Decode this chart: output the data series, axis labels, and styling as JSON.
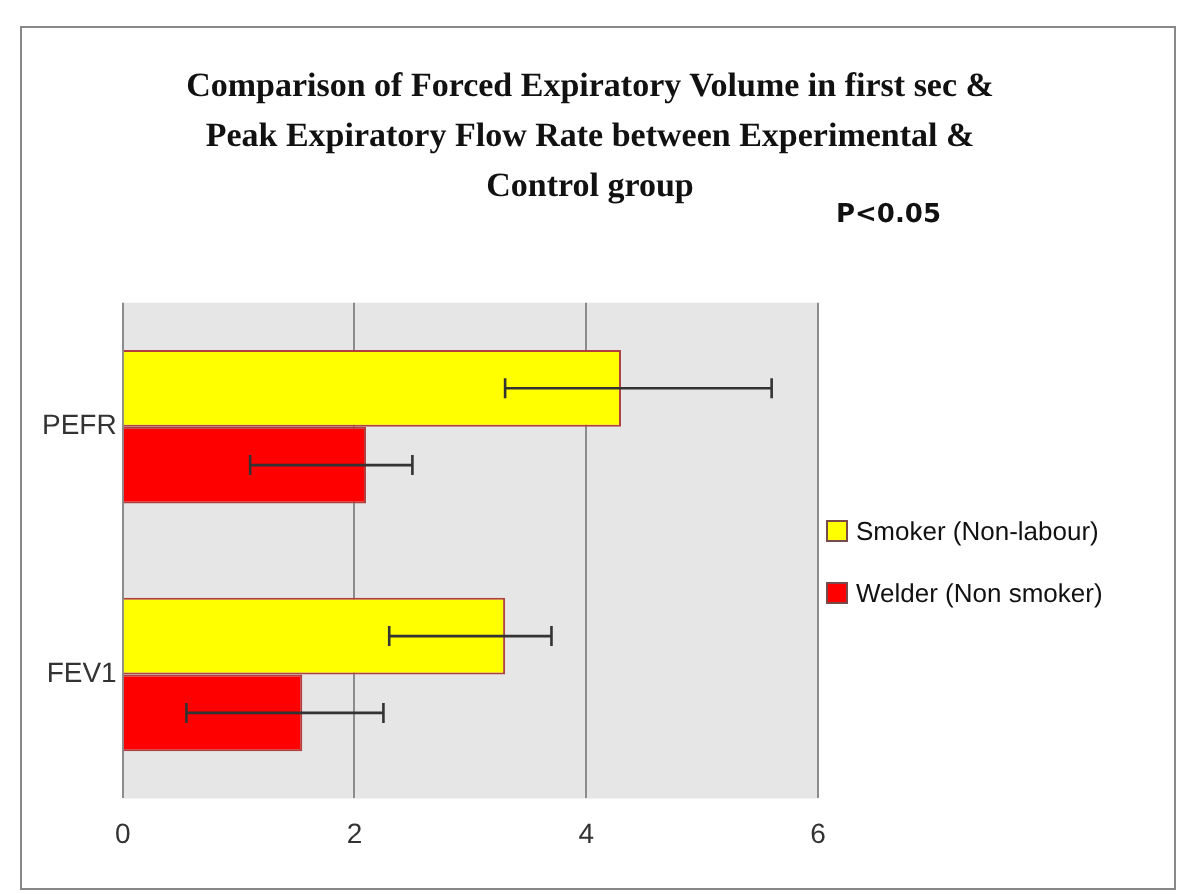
{
  "chart_data": {
    "type": "bar",
    "orientation": "horizontal",
    "title": "Comparison of Forced Expiratory Volume in first sec & Peak Expiratory Flow Rate  between Experimental & Control group",
    "annotations": [
      "P<0.05"
    ],
    "categories": [
      "PEFR",
      "FEV1"
    ],
    "series": [
      {
        "name": "Smoker (Non-labour)",
        "color": "#ffff00",
        "values": [
          4.3,
          3.3
        ],
        "errors": [
          [
            3.3,
            5.6
          ],
          [
            2.3,
            3.7
          ]
        ]
      },
      {
        "name": "Welder (Non smoker)",
        "color": "#ff0000",
        "values": [
          2.1,
          1.55
        ],
        "errors": [
          [
            1.1,
            2.5
          ],
          [
            0.55,
            2.25
          ]
        ]
      }
    ],
    "xlim": [
      0,
      6
    ],
    "xticks": [
      0,
      2,
      4,
      6
    ],
    "grid": "x",
    "legend": "right"
  }
}
